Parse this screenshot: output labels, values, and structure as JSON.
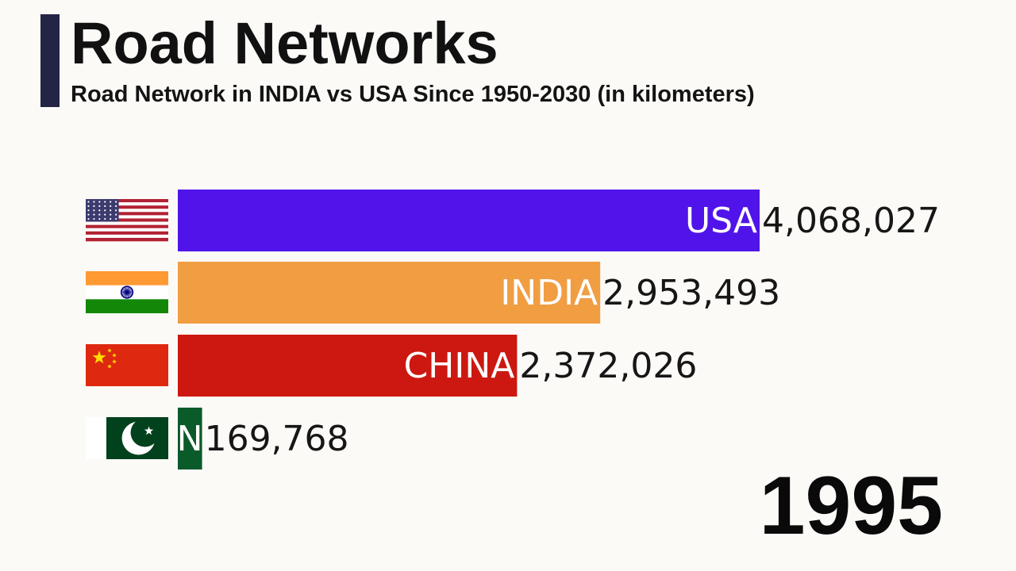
{
  "title": "Road Networks",
  "subtitle": "Road Network in INDIA vs USA Since 1950-2030 (in kilometers)",
  "year": "1995",
  "colors": {
    "USA": "#5014ea",
    "INDIA": "#f19d42",
    "CHINA": "#cc1810",
    "PAKISTAN": "#0b5a2a",
    "accent": "#242444"
  },
  "chart_data": {
    "type": "bar",
    "orientation": "horizontal",
    "categories": [
      "USA",
      "INDIA",
      "CHINA",
      "N"
    ],
    "values": [
      4068027,
      2953493,
      2372026,
      169768
    ],
    "value_labels": [
      "4,068,027",
      "2,953,493",
      "2,372,026",
      "169,768"
    ],
    "icons": [
      "usa-flag-icon",
      "india-flag-icon",
      "china-flag-icon",
      "pakistan-flag-icon"
    ],
    "title": "Road Networks",
    "xlabel": "",
    "ylabel": "",
    "grid": false,
    "legend": "none"
  }
}
